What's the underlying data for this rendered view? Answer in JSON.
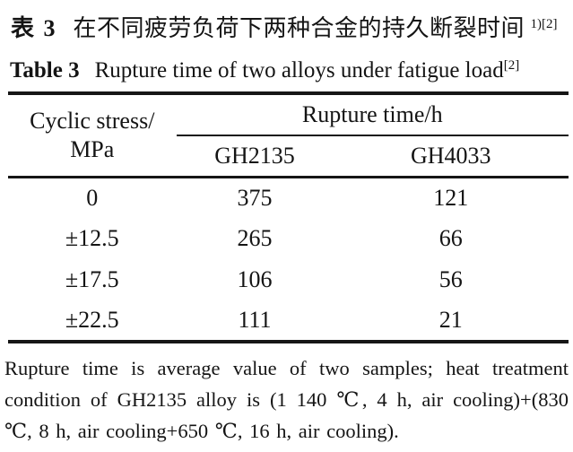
{
  "page": {
    "background": "#ffffff",
    "text_color": "#141414",
    "rule_color": "#161616"
  },
  "title_zh": {
    "label": "表 3",
    "text": "在不同疲劳负荷下两种合金的持久断裂时间",
    "superscript": "1)[2]"
  },
  "title_en": {
    "label": "Table 3",
    "text": "Rupture time of two alloys under fatigue load",
    "superscript": "[2]"
  },
  "table": {
    "row_header": {
      "line1": "Cyclic stress/",
      "line2": "MPa"
    },
    "group_header": "Rupture time/h",
    "columns": [
      "GH2135",
      "GH4033"
    ],
    "rows": [
      {
        "stress": "0",
        "gh2135": "375",
        "gh4033": "121"
      },
      {
        "stress": "±12.5",
        "gh2135": "265",
        "gh4033": "66"
      },
      {
        "stress": "±17.5",
        "gh2135": "106",
        "gh4033": "56"
      },
      {
        "stress": "±22.5",
        "gh2135": "111",
        "gh4033": "21"
      }
    ]
  },
  "footnote": {
    "full_text": "Rupture time is average value of two samples; heat treatment condition of GH2135 alloy is (1 140 ℃, 4 h, air cooling)+(830 ℃, 8 h, air cooling+650 ℃, 16 h, air cooling).",
    "lines": [
      "Rupture time is average value of two samples; heat treatment",
      "condition of GH2135 alloy is (1 140 ℃, 4 h, air cooling)+(830",
      "℃, 8 h, air cooling+650 ℃, 16 h, air cooling)."
    ]
  }
}
